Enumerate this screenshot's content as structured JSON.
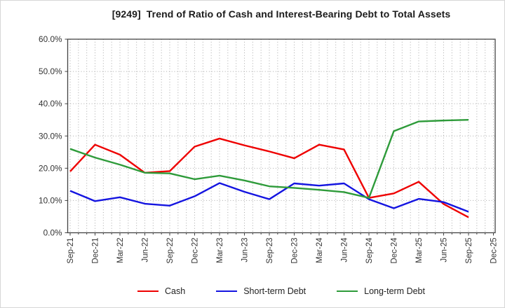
{
  "window": {
    "title": "[9249]  Trend of Ratio of Cash and Interest-Bearing Debt to Total Assets"
  },
  "chart_data": {
    "type": "line",
    "title": "[9249]  Trend of Ratio of Cash and Interest-Bearing Debt to Total Assets",
    "categories": [
      "Sep-21",
      "Dec-21",
      "Mar-22",
      "Jun-22",
      "Sep-22",
      "Dec-22",
      "Mar-23",
      "Jun-23",
      "Sep-23",
      "Dec-23",
      "Mar-24",
      "Jun-24",
      "Sep-24",
      "Dec-24",
      "Mar-25",
      "Jun-25",
      "Sep-25",
      "Dec-25"
    ],
    "series": [
      {
        "name": "Cash",
        "color": "#ee0000",
        "values": [
          19.0,
          27.3,
          24.2,
          18.6,
          19.1,
          26.7,
          29.2,
          27.1,
          25.2,
          23.1,
          27.3,
          25.8,
          10.8,
          12.2,
          15.8,
          8.9,
          4.8,
          null
        ]
      },
      {
        "name": "Short-term Debt",
        "color": "#1414e0",
        "values": [
          13.0,
          9.8,
          11.0,
          9.0,
          8.4,
          11.3,
          15.4,
          12.7,
          10.4,
          15.3,
          14.6,
          15.3,
          10.4,
          7.6,
          10.5,
          9.5,
          6.5,
          null
        ]
      },
      {
        "name": "Long-term Debt",
        "color": "#2e9b3a",
        "values": [
          26.0,
          23.3,
          21.1,
          18.6,
          18.4,
          16.6,
          17.7,
          16.2,
          14.4,
          13.9,
          13.3,
          12.6,
          10.8,
          31.5,
          34.5,
          34.8,
          35.0,
          null
        ]
      }
    ],
    "ylim": [
      0,
      60
    ],
    "ytick_step": 10,
    "ytick_labels": [
      "0.0%",
      "10.0%",
      "20.0%",
      "30.0%",
      "40.0%",
      "50.0%",
      "60.0%"
    ],
    "grid": true,
    "x_minor_gridlines_per_quarter": 3,
    "xtick_rotation": "vertical-bottom-to-top",
    "legend_position": "bottom"
  },
  "colors": {
    "background": "#ffffff",
    "grid": "#aaaaaa",
    "spine": "#444444",
    "tick_label": "#333333",
    "title_text": "#1b1b1b",
    "legend_text": "#222222"
  }
}
